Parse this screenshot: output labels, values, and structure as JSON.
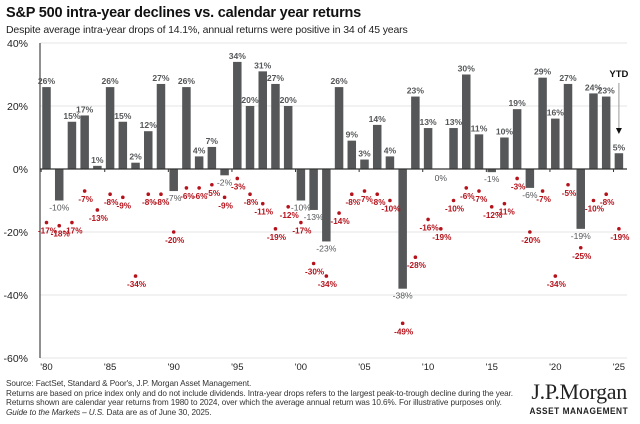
{
  "header": {
    "title": "S&P 500 intra-year declines vs. calendar year returns",
    "subtitle": "Despite average intra-year drops of 14.1%, annual returns were positive in 34 of 45 years"
  },
  "chart_data": {
    "type": "bar",
    "title": "S&P 500 intra-year declines vs. calendar year returns",
    "subtitle": "Despite average intra-year drops of 14.1%, annual returns were positive in 34 of 45 years",
    "xlabel": "",
    "ylabel": "",
    "ylim": [
      -60,
      40
    ],
    "yticks": [
      40,
      20,
      0,
      -20,
      -40,
      -60
    ],
    "ytick_labels": [
      "40%",
      "20%",
      "0%",
      "-20%",
      "-40%",
      "-60%"
    ],
    "xtick_labels": [
      "'80",
      "'85",
      "'90",
      "'95",
      "'00",
      "'05",
      "'10",
      "'15",
      "'20",
      "'25"
    ],
    "xtick_years": [
      1980,
      1985,
      1990,
      1995,
      2000,
      2005,
      2010,
      2015,
      2020,
      2025
    ],
    "grid": true,
    "years": [
      1980,
      1981,
      1982,
      1983,
      1984,
      1985,
      1986,
      1987,
      1988,
      1989,
      1990,
      1991,
      1992,
      1993,
      1994,
      1995,
      1996,
      1997,
      1998,
      1999,
      2000,
      2001,
      2002,
      2003,
      2004,
      2005,
      2006,
      2007,
      2008,
      2009,
      2010,
      2011,
      2012,
      2013,
      2014,
      2015,
      2016,
      2017,
      2018,
      2019,
      2020,
      2021,
      2022,
      2023,
      2024,
      2025
    ],
    "series": [
      {
        "name": "Calendar year return",
        "mark": "bar",
        "color": "#555759",
        "values": [
          26,
          -10,
          15,
          17,
          1,
          26,
          15,
          2,
          12,
          27,
          -7,
          26,
          4,
          7,
          -2,
          34,
          20,
          31,
          27,
          20,
          -10,
          -13,
          -23,
          26,
          9,
          3,
          14,
          4,
          -38,
          23,
          13,
          0,
          13,
          30,
          11,
          -1,
          10,
          19,
          -6,
          29,
          16,
          27,
          -19,
          24,
          23,
          5
        ]
      },
      {
        "name": "Intra-year decline",
        "mark": "dot",
        "color": "#b5121b",
        "values": [
          -17,
          -18,
          -17,
          -7,
          -13,
          -8,
          -9,
          -34,
          -8,
          -8,
          -20,
          -6,
          -6,
          -5,
          -9,
          -3,
          -8,
          -11,
          -19,
          -12,
          -17,
          -30,
          -34,
          -14,
          -8,
          -7,
          -8,
          -10,
          -49,
          -28,
          -16,
          -19,
          -10,
          -6,
          -7,
          -12,
          -11,
          -3,
          -20,
          -7,
          -34,
          -5,
          -25,
          -10,
          -8,
          -19
        ]
      }
    ],
    "annotations": [
      {
        "text": "YTD",
        "year": 2025,
        "type": "arrow-down"
      }
    ],
    "colors": {
      "bar": "#555759",
      "bar_label": "#555759",
      "dot": "#b5121b",
      "axis": "#555555",
      "grid": "#e6e6e6"
    }
  },
  "footer": {
    "source": "Source: FactSet, Standard & Poor's, J.P. Morgan Asset Management.",
    "note1": "Returns are based on price index only and do not include dividends. Intra-year drops refers to the largest peak-to-trough decline during the year.",
    "note2": "Returns shown are calendar year returns from 1980 to 2024, over which the average annual return was 10.6%. For illustrative purposes only.",
    "guide_italic": "Guide to the Markets – U.S.",
    "guide_rest": " Data are as of June 30, 2025."
  },
  "brand": {
    "name": "J.P.Morgan",
    "sub": "ASSET MANAGEMENT"
  }
}
